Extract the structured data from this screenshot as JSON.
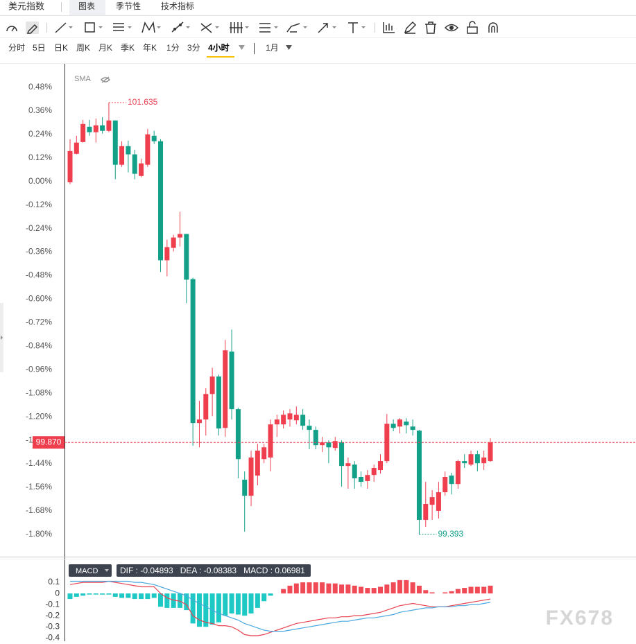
{
  "header": {
    "title": "美元指数",
    "tabs": [
      "图表",
      "季节性",
      "技术指标"
    ],
    "active_tab": "图表"
  },
  "periods": {
    "items": [
      "分时",
      "5日",
      "日K",
      "周K",
      "月K",
      "季K",
      "年K",
      "1分",
      "3分",
      "4小时"
    ],
    "active": "4小时",
    "range": "1月"
  },
  "chart_data": [
    {
      "type": "candlestick",
      "indicator": "SMA",
      "up_color": "#ef3f4f",
      "down_color": "#12a088",
      "ylim": [
        -1.91,
        0.6
      ],
      "yticks": [
        {
          "value": 0.48,
          "label": "0.48%"
        },
        {
          "value": 0.36,
          "label": "0.36%"
        },
        {
          "value": 0.24,
          "label": "0.24%"
        },
        {
          "value": 0.12,
          "label": "0.12%"
        },
        {
          "value": 0,
          "label": "0.00%"
        },
        {
          "value": -0.12,
          "label": "-0.12%"
        },
        {
          "value": -0.24,
          "label": "-0.24%"
        },
        {
          "value": -0.36,
          "label": "-0.36%"
        },
        {
          "value": -0.48,
          "label": "-0.48%"
        },
        {
          "value": -0.6,
          "label": "-0.60%"
        },
        {
          "value": -0.72,
          "label": "-0.72%"
        },
        {
          "value": -0.84,
          "label": "-0.84%"
        },
        {
          "value": -0.96,
          "label": "-0.96%"
        },
        {
          "value": -1.08,
          "label": "-1.08%"
        },
        {
          "value": -1.2,
          "label": "-1.20%"
        },
        {
          "value": -1.32,
          "label": "-1.32%"
        },
        {
          "value": -1.44,
          "label": "-1.44%"
        },
        {
          "value": -1.56,
          "label": "-1.56%"
        },
        {
          "value": -1.68,
          "label": "-1.68%"
        },
        {
          "value": -1.8,
          "label": "-1.80%"
        }
      ],
      "open": [
        -0.004,
        0.141,
        0.201,
        0.279,
        0.251,
        0.286,
        0.258,
        0.311,
        0.085,
        0.18,
        0.138,
        0.028,
        0.085,
        0.233,
        0.205,
        -0.402,
        -0.339,
        -0.286,
        -0.268,
        -0.498,
        -1.232,
        -1.214,
        -1.084,
        -0.995,
        -1.257,
        -0.868,
        -1.161,
        -1.521,
        -1.603,
        -1.5,
        -1.416,
        -1.408,
        -1.239,
        -1.239,
        -1.214,
        -1.218,
        -1.19,
        -1.246,
        -1.267,
        -1.345,
        -1.331,
        -1.359,
        -1.331,
        -1.451,
        -1.444,
        -1.507,
        -1.528,
        -1.497,
        -1.472,
        -1.426,
        -1.236,
        -1.25,
        -1.225,
        -1.25,
        -1.271,
        -1.726,
        -1.649,
        -1.68,
        -1.585,
        -1.5,
        -1.543,
        -1.426,
        -1.444,
        -1.391,
        -1.437,
        -1.426
      ],
      "high": [
        0.215,
        0.233,
        0.314,
        0.314,
        0.321,
        0.328,
        0.402,
        0.311,
        0.205,
        0.208,
        0.162,
        0.116,
        0.268,
        0.258,
        0.215,
        -0.297,
        -0.272,
        -0.155,
        -0.268,
        -0.491,
        -1.119,
        -1.055,
        -0.95,
        -0.985,
        -0.808,
        -0.755,
        -1.154,
        -1.479,
        -1.373,
        -1.338,
        -1.338,
        -1.214,
        -1.19,
        -1.168,
        -1.161,
        -1.147,
        -1.161,
        -1.214,
        -1.25,
        -1.303,
        -1.32,
        -1.303,
        -1.32,
        -1.408,
        -1.426,
        -1.479,
        -1.472,
        -1.444,
        -1.391,
        -1.186,
        -1.214,
        -1.207,
        -1.207,
        -1.214,
        -1.267,
        -1.532,
        -1.574,
        -1.532,
        -1.479,
        -1.486,
        -1.419,
        -1.391,
        -1.373,
        -1.373,
        -1.373,
        -1.31
      ],
      "low": [
        -0.014,
        0.138,
        0.198,
        0.233,
        0.198,
        0.244,
        0.251,
        0.011,
        0.074,
        0.046,
        0.011,
        0.021,
        0.074,
        0.191,
        -0.462,
        -0.484,
        -0.357,
        -0.332,
        -0.621,
        -1.348,
        -1.356,
        -1.296,
        -1.197,
        -1.296,
        -1.303,
        -1.214,
        -1.514,
        -1.786,
        -1.656,
        -1.55,
        -1.437,
        -1.479,
        -1.303,
        -1.26,
        -1.25,
        -1.239,
        -1.267,
        -1.366,
        -1.366,
        -1.38,
        -1.437,
        -1.373,
        -1.557,
        -1.567,
        -1.567,
        -1.557,
        -1.567,
        -1.532,
        -1.49,
        -1.437,
        -1.274,
        -1.285,
        -1.285,
        -1.296,
        -1.8,
        -1.761,
        -1.726,
        -1.719,
        -1.603,
        -1.596,
        -1.567,
        -1.461,
        -1.451,
        -1.479,
        -1.472,
        -1.43
      ],
      "close": [
        0.155,
        0.198,
        0.293,
        0.251,
        0.286,
        0.258,
        0.311,
        0.085,
        0.18,
        0.138,
        0.039,
        0.092,
        0.24,
        0.205,
        -0.402,
        -0.335,
        -0.286,
        -0.268,
        -0.501,
        -1.232,
        -1.214,
        -1.084,
        -0.995,
        -1.26,
        -0.861,
        -1.161,
        -1.416,
        -1.603,
        -1.408,
        -1.373,
        -1.356,
        -1.239,
        -1.214,
        -1.19,
        -1.183,
        -1.19,
        -1.246,
        -1.267,
        -1.345,
        -1.331,
        -1.356,
        -1.324,
        -1.451,
        -1.437,
        -1.514,
        -1.532,
        -1.497,
        -1.461,
        -1.426,
        -1.236,
        -1.257,
        -1.214,
        -1.243,
        -1.267,
        -1.726,
        -1.645,
        -1.61,
        -1.585,
        -1.507,
        -1.543,
        -1.426,
        -1.437,
        -1.391,
        -1.437,
        -1.408,
        -1.331
      ],
      "high_label": "101.635",
      "low_label": "99.393",
      "last_label": "99.870"
    },
    {
      "type": "macd",
      "indicator": "MACD",
      "legend": "DIF : -0.04893   DEA : -0.08383   MACD : 0.06981",
      "ylim": [
        -0.43,
        0.3
      ],
      "yticks": [
        0.1,
        0,
        -0.1,
        -0.2,
        -0.3,
        -0.4
      ],
      "pos_color": "#ef4a55",
      "neg_color": "#1ec8c4",
      "values": [
        -0.05,
        -0.03,
        -0.02,
        -0.01,
        -0.01,
        -0.01,
        -0.01,
        -0.03,
        -0.04,
        -0.04,
        -0.05,
        -0.05,
        -0.05,
        -0.04,
        -0.12,
        -0.13,
        -0.13,
        -0.13,
        -0.15,
        -0.27,
        -0.3,
        -0.3,
        -0.28,
        -0.26,
        -0.2,
        -0.18,
        -0.19,
        -0.2,
        -0.18,
        -0.13,
        -0.07,
        -0.02,
        0,
        0.04,
        0.07,
        0.09,
        0.1,
        0.1,
        0.1,
        0.1,
        0.09,
        0.09,
        0.08,
        0.08,
        0.07,
        0.06,
        0.05,
        0.05,
        0.06,
        0.08,
        0.1,
        0.12,
        0.12,
        0.1,
        0.07,
        0.03,
        0.01,
        0,
        0.01,
        0.02,
        0.04,
        0.05,
        0.06,
        0.06,
        0.06,
        0.07
      ],
      "series": [
        {
          "color": "#e8424f",
          "values": [
            0.08,
            0.09,
            0.1,
            0.1,
            0.1,
            0.1,
            0.11,
            0.1,
            0.09,
            0.08,
            0.07,
            0.06,
            0.06,
            0.06,
            0,
            -0.04,
            -0.06,
            -0.07,
            -0.1,
            -0.2,
            -0.24,
            -0.26,
            -0.27,
            -0.29,
            -0.29,
            -0.3,
            -0.33,
            -0.37,
            -0.38,
            -0.38,
            -0.37,
            -0.35,
            -0.33,
            -0.31,
            -0.29,
            -0.27,
            -0.26,
            -0.25,
            -0.24,
            -0.23,
            -0.22,
            -0.22,
            -0.21,
            -0.21,
            -0.2,
            -0.2,
            -0.19,
            -0.18,
            -0.17,
            -0.15,
            -0.13,
            -0.11,
            -0.1,
            -0.09,
            -0.1,
            -0.11,
            -0.12,
            -0.12,
            -0.12,
            -0.11,
            -0.1,
            -0.09,
            -0.08,
            -0.07,
            -0.06,
            -0.05
          ]
        },
        {
          "color": "#4aa8e0",
          "values": [
            0.11,
            0.11,
            0.11,
            0.11,
            0.11,
            0.11,
            0.11,
            0.11,
            0.11,
            0.11,
            0.1,
            0.1,
            0.09,
            0.08,
            0.06,
            0.04,
            0.02,
            0,
            -0.02,
            -0.06,
            -0.09,
            -0.12,
            -0.15,
            -0.18,
            -0.2,
            -0.22,
            -0.24,
            -0.27,
            -0.29,
            -0.31,
            -0.33,
            -0.34,
            -0.34,
            -0.34,
            -0.33,
            -0.32,
            -0.31,
            -0.3,
            -0.29,
            -0.28,
            -0.27,
            -0.26,
            -0.25,
            -0.25,
            -0.24,
            -0.23,
            -0.22,
            -0.22,
            -0.21,
            -0.2,
            -0.19,
            -0.17,
            -0.16,
            -0.15,
            -0.14,
            -0.13,
            -0.13,
            -0.12,
            -0.12,
            -0.12,
            -0.11,
            -0.11,
            -0.1,
            -0.1,
            -0.09,
            -0.08
          ]
        }
      ]
    }
  ],
  "watermark": "FX678"
}
